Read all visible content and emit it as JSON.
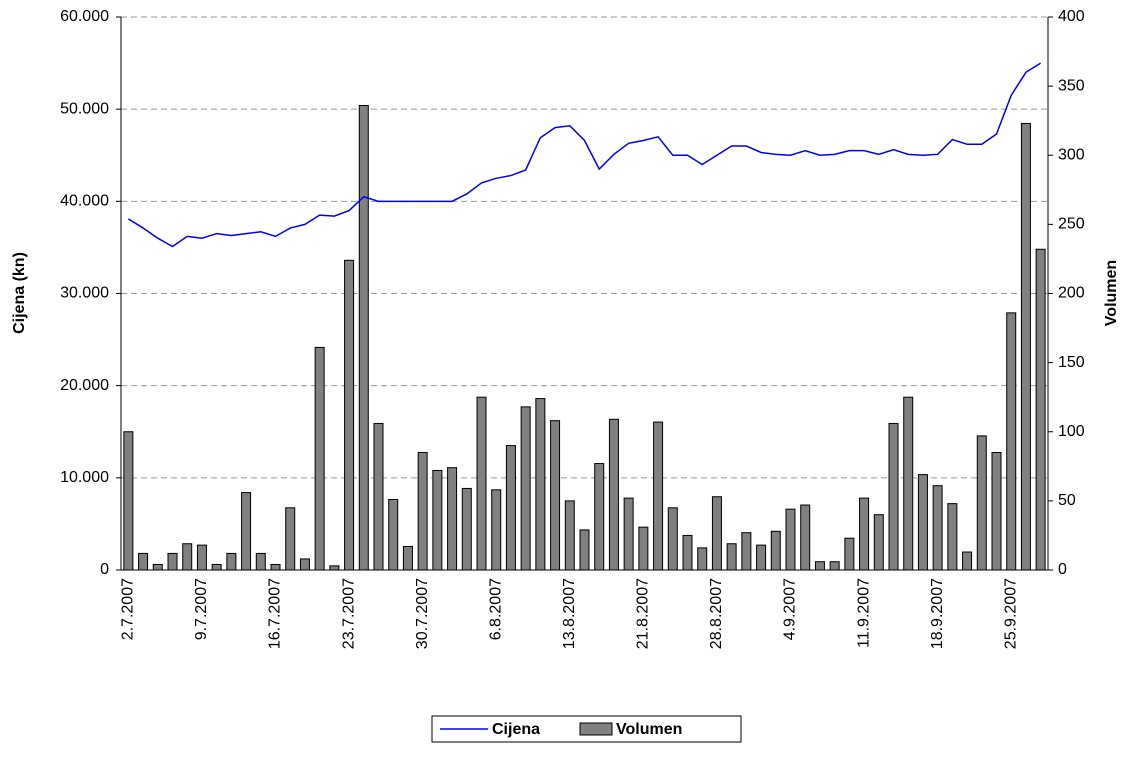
{
  "chart_data": {
    "type": "bar-line",
    "categories": [
      "2.7.2007",
      null,
      null,
      null,
      null,
      "9.7.2007",
      null,
      null,
      null,
      null,
      "16.7.2007",
      null,
      null,
      null,
      null,
      "23.7.2007",
      null,
      null,
      null,
      null,
      "30.7.2007",
      null,
      null,
      null,
      null,
      "6.8.2007",
      null,
      null,
      null,
      null,
      "13.8.2007",
      null,
      null,
      null,
      null,
      "21.8.2007",
      null,
      null,
      null,
      null,
      "28.8.2007",
      null,
      null,
      null,
      null,
      "4.9.2007",
      null,
      null,
      null,
      null,
      "11.9.2007",
      null,
      null,
      null,
      null,
      "18.9.2007",
      null,
      null,
      null,
      null,
      "25.9.2007",
      null,
      null
    ],
    "series": [
      {
        "name": "Cijena",
        "kind": "line",
        "color": "#0000ff",
        "values": [
          38100,
          37100,
          36000,
          35100,
          36200,
          36000,
          36500,
          36300,
          36500,
          36700,
          36200,
          37100,
          37500,
          38500,
          38400,
          39000,
          40500,
          40000,
          40000,
          40000,
          40000,
          40000,
          40000,
          40800,
          42000,
          42500,
          42800,
          43400,
          46900,
          48000,
          48200,
          46600,
          43500,
          45100,
          46300,
          46600,
          47000,
          45000,
          45000,
          44000,
          45000,
          46000,
          46000,
          45300,
          45100,
          45000,
          45500,
          45000,
          45100,
          45500,
          45500,
          45100,
          45600,
          45100,
          45000,
          45100,
          46700,
          46200,
          46200,
          47300,
          51500,
          54000,
          55000
        ]
      },
      {
        "name": "Volumen",
        "kind": "bar",
        "axis": "y2",
        "color": "#808080",
        "values": [
          100,
          12,
          4,
          12,
          19,
          18,
          4,
          12,
          56,
          12,
          4,
          45,
          8,
          161,
          3,
          224,
          336,
          106,
          51,
          17,
          85,
          72,
          74,
          59,
          125,
          58,
          90,
          118,
          124,
          108,
          50,
          29,
          77,
          109,
          52,
          31,
          107,
          45,
          25,
          16,
          53,
          19,
          27,
          18,
          28,
          44,
          47,
          6,
          6,
          23,
          52,
          40,
          106,
          125,
          69,
          61,
          48,
          13,
          97,
          85,
          186,
          323,
          232
        ]
      }
    ],
    "ylabel": "Cijena (kn)",
    "y2label": "Volumen",
    "ylim": [
      0,
      60000
    ],
    "yticks": [
      {
        "value": 0,
        "label": "0"
      },
      {
        "value": 10000,
        "label": "10.000"
      },
      {
        "value": 20000,
        "label": "20.000"
      },
      {
        "value": 30000,
        "label": "30.000"
      },
      {
        "value": 40000,
        "label": "40.000"
      },
      {
        "value": 50000,
        "label": "50.000"
      },
      {
        "value": 60000,
        "label": "60.000"
      }
    ],
    "y2lim": [
      0,
      400
    ],
    "y2ticks": [
      0,
      50,
      100,
      150,
      200,
      250,
      300,
      350,
      400
    ],
    "grid": true,
    "legend": "bottom"
  }
}
